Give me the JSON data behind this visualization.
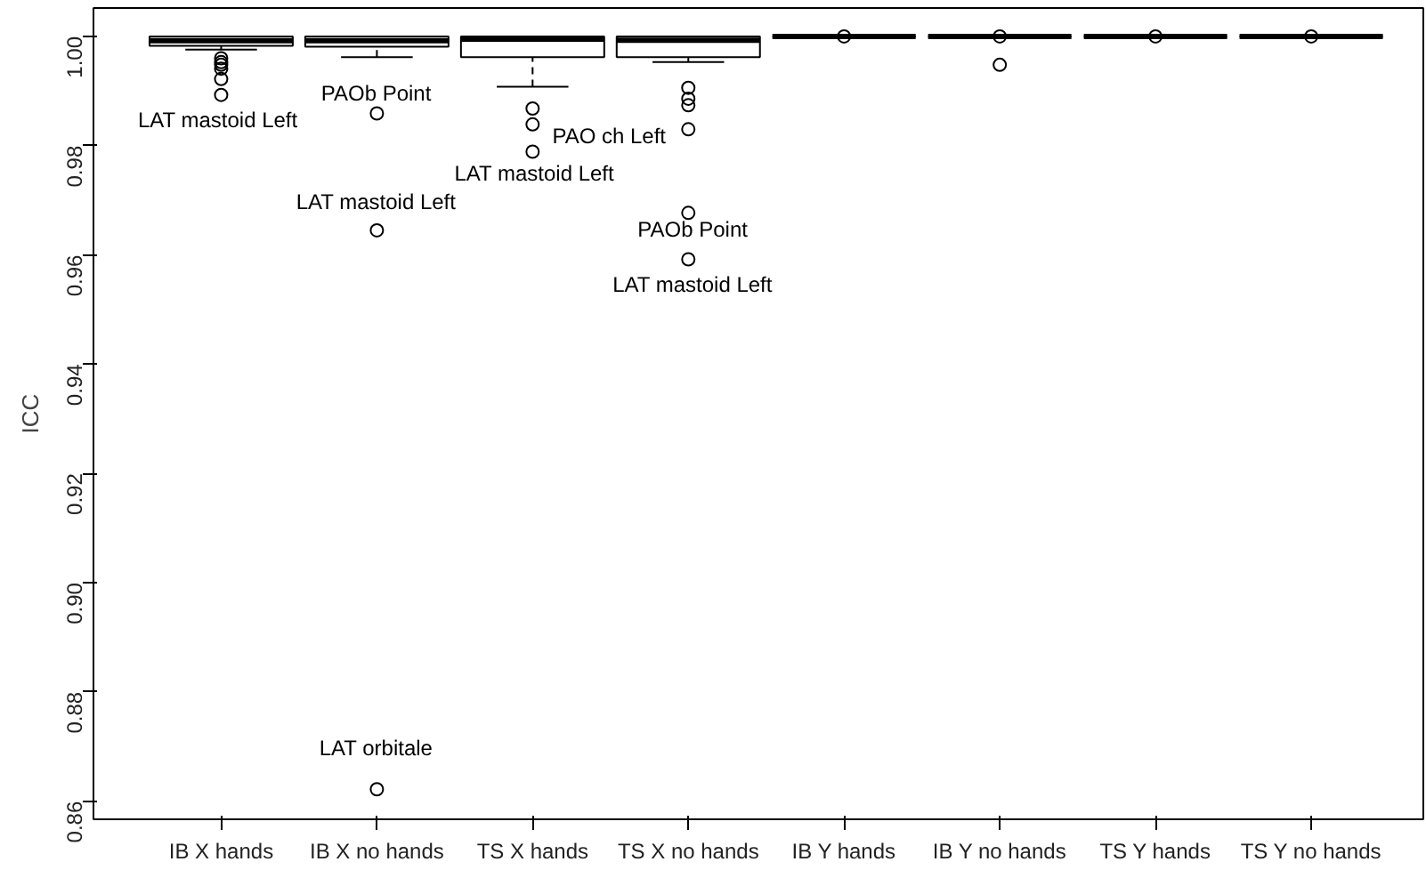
{
  "chart_data": {
    "type": "box",
    "ylabel": "ICC",
    "categories": [
      "IB X hands",
      "IB X no hands",
      "TS X hands",
      "TS X no hands",
      "IB Y hands",
      "IB Y no hands",
      "TS Y hands",
      "TS Y no hands"
    ],
    "boxes": [
      {
        "low": 0.9976,
        "q1": 0.9983,
        "median": 0.9992,
        "q3": 1.0,
        "high": 1.0,
        "outliers": [
          0.996,
          0.9953,
          0.9948,
          0.9941,
          0.9922,
          0.9893
        ]
      },
      {
        "low": 0.9962,
        "q1": 0.9981,
        "median": 0.9992,
        "q3": 1.0,
        "high": 1.0,
        "outliers": [
          0.9859,
          0.9645,
          0.8622
        ]
      },
      {
        "low": 0.9908,
        "q1": 0.9962,
        "median": 0.9995,
        "q3": 1.0,
        "high": 1.0,
        "outliers": [
          0.9868,
          0.9839,
          0.9789
        ]
      },
      {
        "low": 0.9953,
        "q1": 0.9962,
        "median": 0.9993,
        "q3": 1.0,
        "high": 1.0,
        "outliers": [
          0.9906,
          0.9886,
          0.9874,
          0.983,
          0.9677,
          0.9592
        ]
      },
      {
        "low": 1.0,
        "q1": 1.0,
        "median": 1.0,
        "q3": 1.0,
        "high": 1.0,
        "outliers": [
          1.0
        ]
      },
      {
        "low": 1.0,
        "q1": 1.0,
        "median": 1.0,
        "q3": 1.0,
        "high": 1.0,
        "outliers": [
          1.0,
          0.9948
        ]
      },
      {
        "low": 1.0,
        "q1": 1.0,
        "median": 1.0,
        "q3": 1.0,
        "high": 1.0,
        "outliers": [
          1.0
        ]
      },
      {
        "low": 1.0,
        "q1": 1.0,
        "median": 1.0,
        "q3": 1.0,
        "high": 1.0,
        "outliers": [
          1.0
        ]
      }
    ],
    "annotations": [
      "LAT mastoid Left",
      "PAOb Point",
      "LAT mastoid Left",
      "LAT orbitale",
      "PAO ch Left",
      "LAT mastoid Left",
      "PAOb Point",
      "LAT mastoid Left"
    ],
    "ylim": [
      0.8567,
      1.0052
    ],
    "yticks": [
      0.86,
      0.88,
      {
        "value": 0.9,
        "label": "0.90"
      },
      0.92,
      0.94,
      0.96,
      0.98,
      {
        "value": 1.0,
        "label": "1.00"
      }
    ],
    "line_style": "dashed",
    "grid": false
  }
}
